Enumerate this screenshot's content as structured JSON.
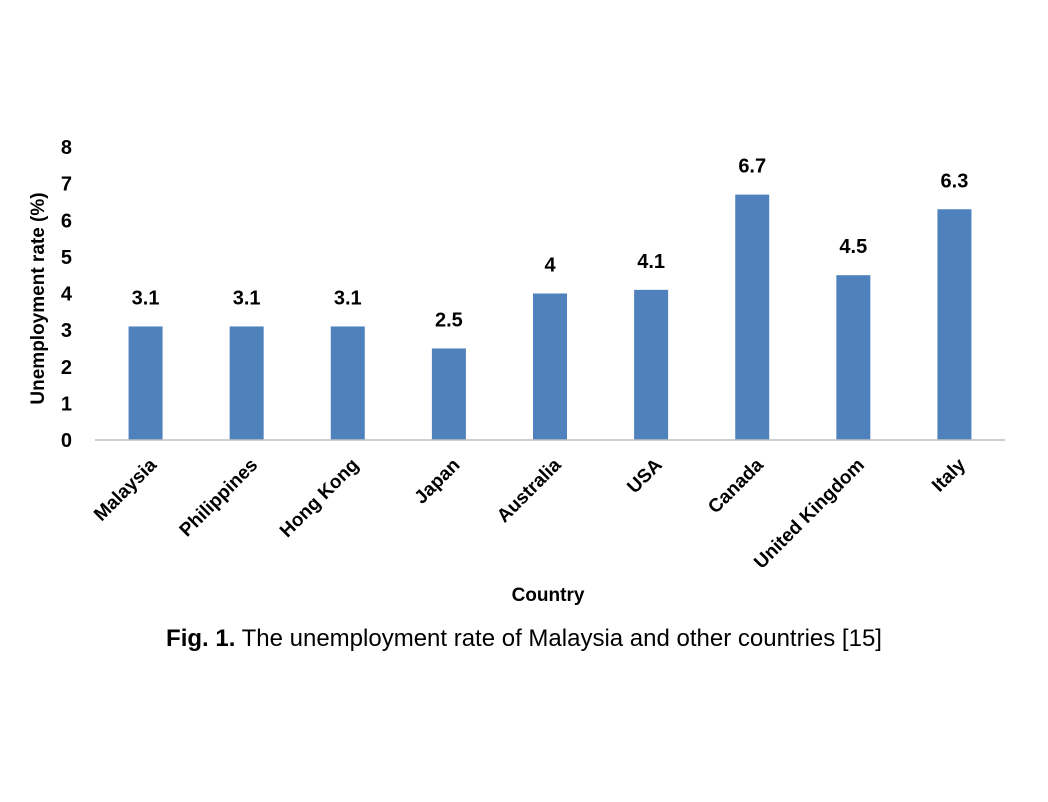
{
  "chart_data": {
    "type": "bar",
    "categories": [
      "Malaysia",
      "Philippines",
      "Hong Kong",
      "Japan",
      "Australia",
      "USA",
      "Canada",
      "United Kingdom",
      "Italy"
    ],
    "values": [
      3.1,
      3.1,
      3.1,
      2.5,
      4,
      4.1,
      6.7,
      4.5,
      6.3
    ],
    "data_labels": [
      "3.1",
      "3.1",
      "3.1",
      "2.5",
      "4",
      "4.1",
      "6.7",
      "4.5",
      "6.3"
    ],
    "xlabel": "Country",
    "ylabel": "Unemployment rate (%)",
    "ylim": [
      0,
      8
    ],
    "yticks": [
      "0",
      "1",
      "2",
      "3",
      "4",
      "5",
      "6",
      "7",
      "8"
    ],
    "bar_color": "#4f81bd",
    "grid": false,
    "legend": "none"
  },
  "caption": {
    "label": "Fig. 1.",
    "text": "The unemployment rate of Malaysia and other countries [15]"
  }
}
